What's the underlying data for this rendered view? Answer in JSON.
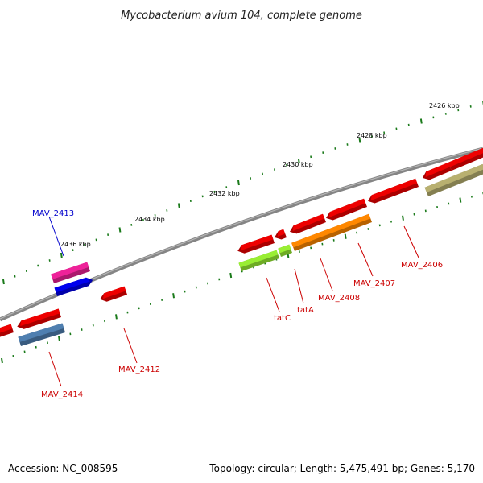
{
  "title": "Mycobacterium avium 104, complete genome",
  "footer": {
    "accession": "Accession: NC_008595",
    "info": "Topology: circular; Length: 5,475,491 bp; Genes: 5,170"
  },
  "colors": {
    "backbone": "#8a8a8a",
    "tick": "#1a7a1a",
    "gene_red": "#ee0000",
    "label_red": "#cc0000",
    "label_blue": "#0000cc",
    "magenta": "#ee2299",
    "blue": "#0000ee",
    "steelblue": "#4f7fb0",
    "lime": "#99ee33",
    "orange": "#ff8800",
    "khaki": "#b8b070"
  },
  "tick_labels": [
    "2426 kbp",
    "2428 kbp",
    "2430 kbp",
    "2432 kbp",
    "2434 kbp",
    "2436 kbp"
  ],
  "genes": [
    {
      "label": "MAV_2406",
      "color": "red"
    },
    {
      "label": "MAV_2407",
      "color": "red"
    },
    {
      "label": "MAV_2408",
      "color": "red"
    },
    {
      "label": "tatA",
      "color": "red"
    },
    {
      "label": "tatC",
      "color": "red"
    },
    {
      "label": "MAV_2412",
      "color": "red"
    },
    {
      "label": "MAV_2413",
      "color": "blue"
    },
    {
      "label": "MAV_2414",
      "color": "red"
    }
  ]
}
